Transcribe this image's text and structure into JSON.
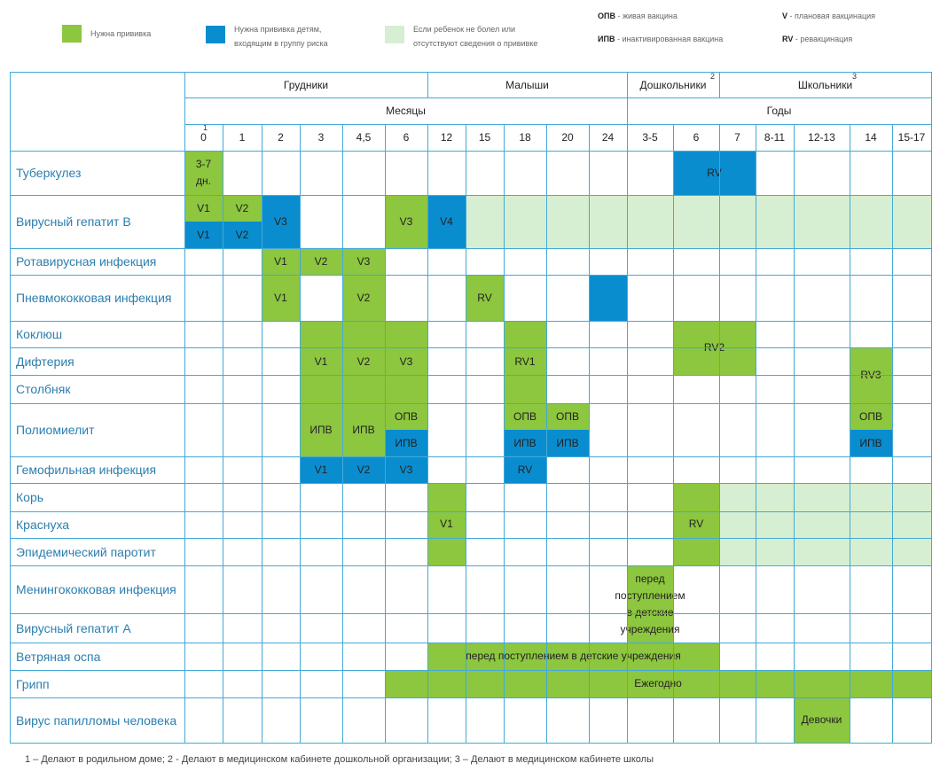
{
  "colors": {
    "green": "#8dc63f",
    "blue": "#0a8dcf",
    "pale": "#d6efd2",
    "grid": "#44a9d6",
    "label": "#2b7fb0"
  },
  "legend": {
    "need": "Нужна прививка",
    "risk": "Нужна прививка детям, входящим в группу риска",
    "optional": "Если ребенок не болел или отсутствуют сведения о прививке",
    "opv_code": "ОПВ",
    "opv_text": "живая вакцина",
    "ipv_code": "ИПВ",
    "ipv_text": "инактивированная вакцина",
    "v_code": "V",
    "v_text": "плановая вакцинация",
    "rv_code": "RV",
    "rv_text": "ревакцинация"
  },
  "groups": [
    "Грудники",
    "Малыши",
    "Дошкольники",
    "Школьники"
  ],
  "group_sups": [
    "",
    "",
    "2",
    "3"
  ],
  "units": [
    "Месяцы",
    "Годы"
  ],
  "columns": [
    "0",
    "1",
    "2",
    "3",
    "4,5",
    "6",
    "12",
    "15",
    "18",
    "20",
    "24",
    "3-5",
    "6",
    "7",
    "8-11",
    "12-13",
    "14",
    "15-17"
  ],
  "col_sup": "1",
  "rows": [
    "Туберкулез",
    "Вирусный гепатит В",
    "Ротавирусная инфекция",
    "Пневмококковая инфекция",
    "Коклюш",
    "Дифтерия",
    "Столбняк",
    "Полиомиелит",
    "Гемофильная инфекция",
    "Корь",
    "Краснуха",
    "Эпидемический паротит",
    "Менингококковая инфекция",
    "Вирусный гепатит А",
    "Ветряная оспа",
    "Грипп",
    "Вирус папилломы человека"
  ],
  "cells": [
    {
      "r0": 0,
      "r1": 0,
      "c0": 0,
      "c1": 0,
      "color": "green",
      "text": "3-7 дн."
    },
    {
      "r0": 0,
      "r1": 0,
      "c0": 12,
      "c1": 13,
      "color": "blue",
      "text": "RV"
    },
    {
      "r0": 1,
      "r1": 1,
      "c0": 7,
      "c1": 17,
      "color": "pale",
      "text": ""
    },
    {
      "r0": 1,
      "r1": 1,
      "c0": 0,
      "c1": 0,
      "color": "green",
      "text": "V1",
      "part": "top"
    },
    {
      "r0": 1,
      "r1": 1,
      "c0": 0,
      "c1": 0,
      "color": "blue",
      "text": "V1",
      "part": "bottom"
    },
    {
      "r0": 1,
      "r1": 1,
      "c0": 1,
      "c1": 1,
      "color": "green",
      "text": "V2",
      "part": "top"
    },
    {
      "r0": 1,
      "r1": 1,
      "c0": 1,
      "c1": 1,
      "color": "blue",
      "text": "V2",
      "part": "bottom"
    },
    {
      "r0": 1,
      "r1": 1,
      "c0": 2,
      "c1": 2,
      "color": "blue",
      "text": "V3"
    },
    {
      "r0": 1,
      "r1": 1,
      "c0": 5,
      "c1": 5,
      "color": "green",
      "text": "V3"
    },
    {
      "r0": 1,
      "r1": 1,
      "c0": 6,
      "c1": 6,
      "color": "blue",
      "text": "V4"
    },
    {
      "r0": 2,
      "r1": 2,
      "c0": 2,
      "c1": 2,
      "color": "green",
      "text": "V1"
    },
    {
      "r0": 2,
      "r1": 2,
      "c0": 3,
      "c1": 3,
      "color": "green",
      "text": "V2"
    },
    {
      "r0": 2,
      "r1": 2,
      "c0": 4,
      "c1": 4,
      "color": "green",
      "text": "V3"
    },
    {
      "r0": 3,
      "r1": 3,
      "c0": 2,
      "c1": 2,
      "color": "green",
      "text": "V1"
    },
    {
      "r0": 3,
      "r1": 3,
      "c0": 4,
      "c1": 4,
      "color": "green",
      "text": "V2"
    },
    {
      "r0": 3,
      "r1": 3,
      "c0": 7,
      "c1": 7,
      "color": "green",
      "text": "RV"
    },
    {
      "r0": 3,
      "r1": 3,
      "c0": 10,
      "c1": 10,
      "color": "blue",
      "text": ""
    },
    {
      "r0": 4,
      "r1": 6,
      "c0": 3,
      "c1": 3,
      "color": "green",
      "text": "V1"
    },
    {
      "r0": 4,
      "r1": 6,
      "c0": 4,
      "c1": 4,
      "color": "green",
      "text": "V2"
    },
    {
      "r0": 4,
      "r1": 6,
      "c0": 5,
      "c1": 5,
      "color": "green",
      "text": "V3"
    },
    {
      "r0": 4,
      "r1": 6,
      "c0": 8,
      "c1": 8,
      "color": "green",
      "text": "RV1"
    },
    {
      "r0": 4,
      "r1": 5,
      "c0": 12,
      "c1": 13,
      "color": "green",
      "text": "RV2"
    },
    {
      "r0": 5,
      "r1": 6,
      "c0": 16,
      "c1": 16,
      "color": "green",
      "text": "RV3"
    },
    {
      "r0": 7,
      "r1": 7,
      "c0": 3,
      "c1": 3,
      "color": "green",
      "text": "ИПВ"
    },
    {
      "r0": 7,
      "r1": 7,
      "c0": 4,
      "c1": 4,
      "color": "green",
      "text": "ИПВ"
    },
    {
      "r0": 7,
      "r1": 7,
      "c0": 5,
      "c1": 5,
      "color": "green",
      "text": "ОПВ",
      "part": "top"
    },
    {
      "r0": 7,
      "r1": 7,
      "c0": 5,
      "c1": 5,
      "color": "blue",
      "text": "ИПВ",
      "part": "bottom"
    },
    {
      "r0": 7,
      "r1": 7,
      "c0": 8,
      "c1": 8,
      "color": "green",
      "text": "ОПВ",
      "part": "top"
    },
    {
      "r0": 7,
      "r1": 7,
      "c0": 8,
      "c1": 8,
      "color": "blue",
      "text": "ИПВ",
      "part": "bottom"
    },
    {
      "r0": 7,
      "r1": 7,
      "c0": 9,
      "c1": 9,
      "color": "green",
      "text": "ОПВ",
      "part": "top"
    },
    {
      "r0": 7,
      "r1": 7,
      "c0": 9,
      "c1": 9,
      "color": "blue",
      "text": "ИПВ",
      "part": "bottom"
    },
    {
      "r0": 7,
      "r1": 7,
      "c0": 16,
      "c1": 16,
      "color": "green",
      "text": "ОПВ",
      "part": "top"
    },
    {
      "r0": 7,
      "r1": 7,
      "c0": 16,
      "c1": 16,
      "color": "blue",
      "text": "ИПВ",
      "part": "bottom"
    },
    {
      "r0": 8,
      "r1": 8,
      "c0": 3,
      "c1": 3,
      "color": "blue",
      "text": "V1"
    },
    {
      "r0": 8,
      "r1": 8,
      "c0": 4,
      "c1": 4,
      "color": "blue",
      "text": "V2"
    },
    {
      "r0": 8,
      "r1": 8,
      "c0": 5,
      "c1": 5,
      "color": "blue",
      "text": "V3"
    },
    {
      "r0": 8,
      "r1": 8,
      "c0": 8,
      "c1": 8,
      "color": "blue",
      "text": "RV"
    },
    {
      "r0": 9,
      "r1": 11,
      "c0": 6,
      "c1": 6,
      "color": "green",
      "text": "V1"
    },
    {
      "r0": 9,
      "r1": 11,
      "c0": 12,
      "c1": 12,
      "color": "green",
      "text": "RV"
    },
    {
      "r0": 9,
      "r1": 11,
      "c0": 13,
      "c1": 17,
      "color": "pale",
      "text": ""
    },
    {
      "r0": 12,
      "r1": 13,
      "c0": 11,
      "c1": 11,
      "color": "green",
      "text": "перед поступлением в детские учреждения"
    },
    {
      "r0": 14,
      "r1": 14,
      "c0": 6,
      "c1": 12,
      "color": "green",
      "text": "перед поступлением в детские учреждения"
    },
    {
      "r0": 15,
      "r1": 15,
      "c0": 5,
      "c1": 17,
      "color": "green",
      "text": "Ежегодно"
    },
    {
      "r0": 16,
      "r1": 16,
      "c0": 15,
      "c1": 15,
      "color": "green",
      "text": "Девочки"
    }
  ],
  "footnote": "1 – Делают в родильном доме; 2 - Делают в медицинском кабинете дошкольной организации; 3 – Делают в медицинском кабинете школы"
}
